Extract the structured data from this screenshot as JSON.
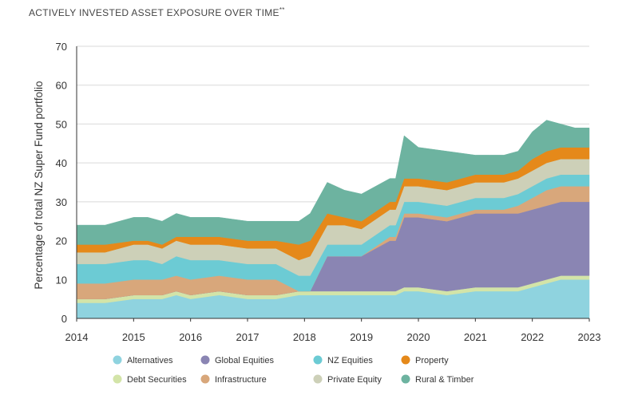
{
  "chart_data": {
    "type": "area",
    "stacked": true,
    "title": "ACTIVELY INVESTED ASSET EXPOSURE OVER TIME",
    "title_suffix": "**",
    "xlabel": "",
    "ylabel": "Percentage of total NZ Super Fund portfolio",
    "xlim": [
      2014,
      2023
    ],
    "ylim": [
      0,
      70
    ],
    "yticks": [
      0,
      10,
      20,
      30,
      40,
      50,
      60,
      70
    ],
    "xticks": [
      2014,
      2015,
      2016,
      2017,
      2018,
      2019,
      2020,
      2021,
      2022,
      2023
    ],
    "grid": "horizontal",
    "legend_position": "bottom",
    "x": [
      2014.0,
      2014.5,
      2015.0,
      2015.25,
      2015.5,
      2015.75,
      2016.0,
      2016.5,
      2017.0,
      2017.5,
      2017.9,
      2018.1,
      2018.4,
      2018.7,
      2019.0,
      2019.5,
      2019.6,
      2019.75,
      2020.0,
      2020.5,
      2021.0,
      2021.25,
      2021.5,
      2021.75,
      2022.0,
      2022.25,
      2022.5,
      2022.75,
      2023.0
    ],
    "series": [
      {
        "name": "Alternatives",
        "color": "#8fd3df",
        "values": [
          4,
          4,
          5,
          5,
          5,
          6,
          5,
          6,
          5,
          5,
          6,
          6,
          6,
          6,
          6,
          6,
          6,
          7,
          7,
          6,
          7,
          7,
          7,
          7,
          8,
          9,
          10,
          10,
          10
        ]
      },
      {
        "name": "Debt Securities",
        "color": "#d3e4a8",
        "values": [
          1,
          1,
          1,
          1,
          1,
          1,
          1,
          1,
          1,
          1,
          1,
          1,
          1,
          1,
          1,
          1,
          1,
          1,
          1,
          1,
          1,
          1,
          1,
          1,
          1,
          1,
          1,
          1,
          1
        ]
      },
      {
        "name": "Global Equities",
        "color": "#8a85b3",
        "values": [
          0,
          0,
          0,
          0,
          0,
          0,
          0,
          0,
          0,
          0,
          0,
          0,
          9,
          9,
          9,
          13,
          13,
          18,
          18,
          18,
          19,
          19,
          19,
          19,
          19,
          19,
          19,
          19,
          19
        ]
      },
      {
        "name": "Infrastructure",
        "color": "#d8a77b",
        "values": [
          4,
          4,
          4,
          4,
          4,
          4,
          4,
          4,
          4,
          4,
          0,
          0,
          0,
          0,
          0,
          1,
          1,
          1,
          1,
          1,
          1,
          1,
          1,
          2,
          3,
          4,
          4,
          4,
          4
        ]
      },
      {
        "name": "NZ Equities",
        "color": "#6ccbd4",
        "values": [
          5,
          5,
          5,
          5,
          4,
          5,
          5,
          4,
          4,
          4,
          4,
          4,
          3,
          3,
          3,
          3,
          3,
          3,
          3,
          3,
          3,
          3,
          3,
          3,
          3,
          3,
          3,
          3,
          3
        ]
      },
      {
        "name": "Private Equity",
        "color": "#cdd0b8",
        "values": [
          3,
          3,
          4,
          4,
          4,
          4,
          4,
          4,
          4,
          4,
          4,
          5,
          5,
          5,
          4,
          4,
          4,
          4,
          4,
          4,
          4,
          4,
          4,
          4,
          4,
          4,
          4,
          4,
          4
        ]
      },
      {
        "name": "Property",
        "color": "#e5891a",
        "values": [
          2,
          2,
          1,
          1,
          1,
          1,
          2,
          2,
          2,
          2,
          4,
          4,
          3,
          2,
          2,
          2,
          2,
          2,
          2,
          2,
          2,
          2,
          2,
          2,
          3,
          3,
          3,
          3,
          3
        ]
      },
      {
        "name": "Rural & Timber",
        "color": "#6db3a0",
        "values": [
          5,
          5,
          6,
          6,
          6,
          6,
          5,
          5,
          5,
          5,
          6,
          7,
          8,
          7,
          7,
          6,
          6,
          11,
          8,
          8,
          5,
          5,
          5,
          5,
          7,
          8,
          6,
          5,
          5
        ]
      }
    ]
  },
  "legend_order": [
    "Alternatives",
    "Global Equities",
    "NZ Equities",
    "Property",
    "Debt Securities",
    "Infrastructure",
    "Private Equity",
    "Rural & Timber"
  ]
}
